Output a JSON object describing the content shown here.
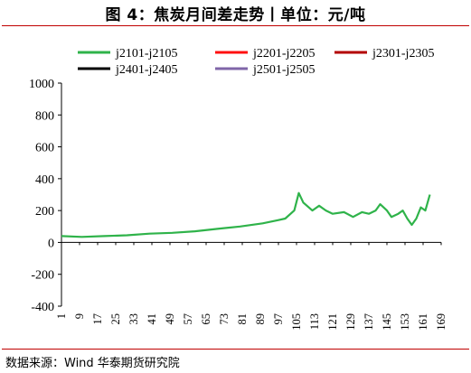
{
  "header": {
    "title": "图 4：焦炭月间差走势丨单位：元/吨"
  },
  "source": {
    "text": "数据来源：Wind 华泰期货研究院"
  },
  "colors": {
    "j2101-j2105": "#2fb34a",
    "j2201-j2205": "#ff1010",
    "j2301-j2305": "#b30000",
    "j2401-j2405": "#000000",
    "j2501-j2505": "#7f66a8",
    "rule": "#c00000"
  },
  "chart_data": {
    "type": "line",
    "title": "",
    "xlabel": "",
    "ylabel": "",
    "xlim": [
      1,
      169
    ],
    "ylim": [
      -400,
      1000
    ],
    "x_ticks": [
      1,
      9,
      17,
      25,
      33,
      41,
      49,
      57,
      65,
      73,
      81,
      89,
      97,
      105,
      113,
      121,
      129,
      137,
      145,
      153,
      161,
      169
    ],
    "y_ticks": [
      -400,
      -200,
      0,
      200,
      400,
      600,
      800,
      1000
    ],
    "grid": false,
    "legend": {
      "placement": "top",
      "columns": 3
    },
    "series": [
      {
        "name": "j2101-j2105",
        "points": [
          [
            1,
            40
          ],
          [
            10,
            35
          ],
          [
            20,
            40
          ],
          [
            30,
            45
          ],
          [
            40,
            55
          ],
          [
            50,
            60
          ],
          [
            60,
            70
          ],
          [
            70,
            85
          ],
          [
            80,
            100
          ],
          [
            90,
            120
          ],
          [
            97,
            140
          ],
          [
            100,
            150
          ],
          [
            104,
            200
          ],
          [
            106,
            310
          ],
          [
            108,
            250
          ],
          [
            112,
            200
          ],
          [
            115,
            230
          ],
          [
            118,
            200
          ],
          [
            121,
            180
          ],
          [
            126,
            190
          ],
          [
            130,
            160
          ],
          [
            134,
            190
          ],
          [
            137,
            180
          ],
          [
            140,
            200
          ],
          [
            142,
            240
          ],
          [
            145,
            200
          ],
          [
            147,
            160
          ],
          [
            150,
            180
          ],
          [
            152,
            200
          ],
          [
            154,
            150
          ],
          [
            156,
            110
          ],
          [
            158,
            150
          ],
          [
            160,
            220
          ],
          [
            162,
            200
          ],
          [
            164,
            300
          ]
        ]
      },
      {
        "name": "j2201-j2205",
        "points": []
      },
      {
        "name": "j2301-j2305",
        "points": []
      },
      {
        "name": "j2401-j2405",
        "points": []
      },
      {
        "name": "j2501-j2505",
        "points": []
      }
    ]
  }
}
